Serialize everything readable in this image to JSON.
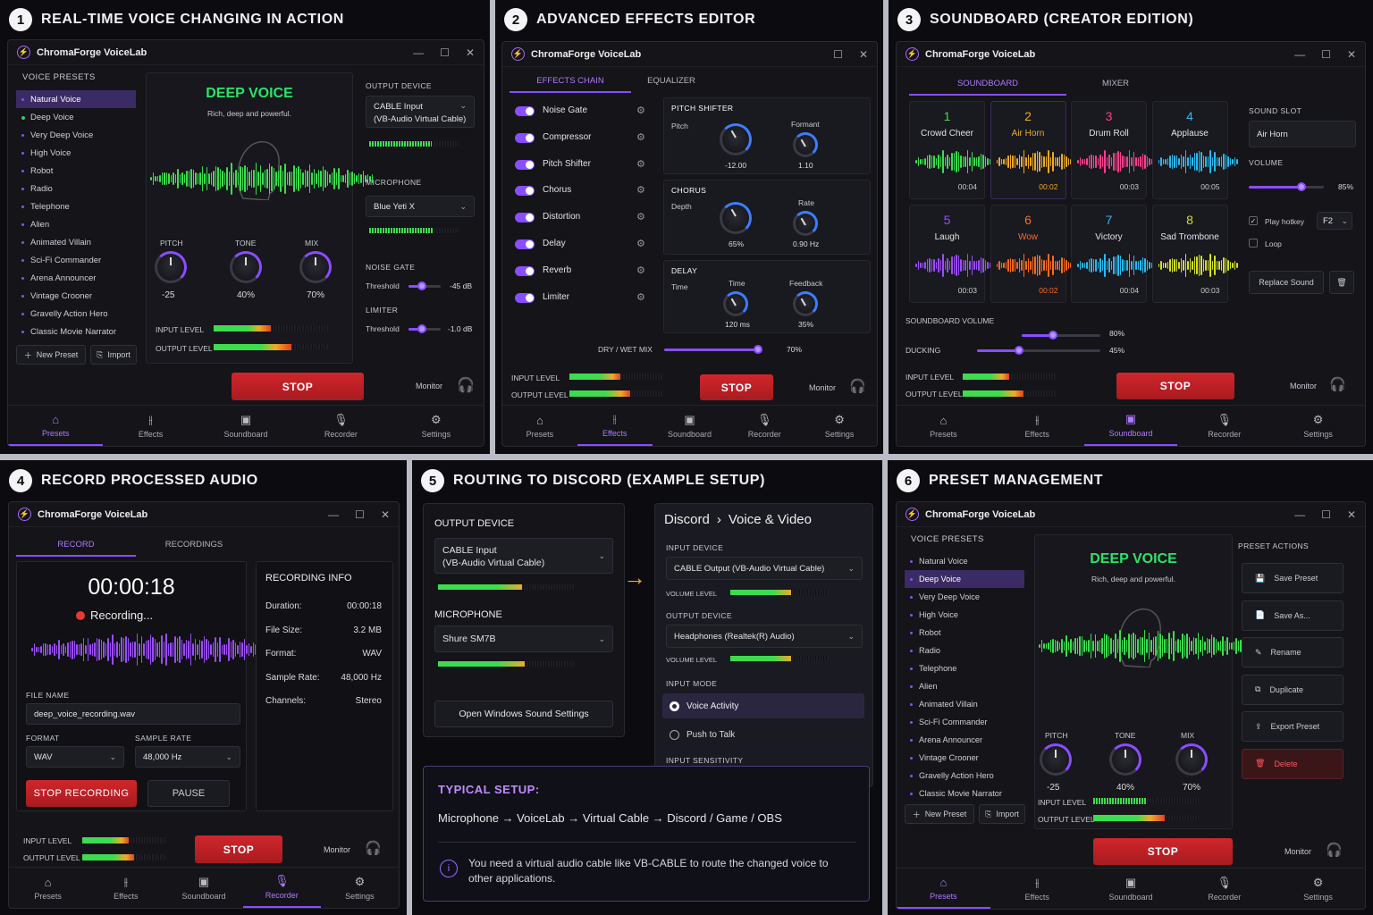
{
  "app_title": "ChromaForge VoiceLab",
  "nav": [
    "Presets",
    "Effects",
    "Soundboard",
    "Recorder",
    "Settings"
  ],
  "monitor": "Monitor",
  "stop": "STOP",
  "input_level": "INPUT LEVEL",
  "output_level": "OUTPUT LEVEL",
  "colors": {
    "accent": "#8a4dff",
    "stop": "#c8232a",
    "green": "#3ddc4e"
  },
  "p1": {
    "num": "1",
    "title": "REAL-TIME VOICE CHANGING IN ACTION",
    "presets_header": "VOICE PRESETS",
    "presets": [
      "Natural Voice",
      "Deep Voice",
      "Very Deep Voice",
      "High Voice",
      "Robot",
      "Radio",
      "Telephone",
      "Alien",
      "Animated Villain",
      "Sci-Fi Commander",
      "Arena Announcer",
      "Vintage Crooner",
      "Gravelly Action Hero",
      "Classic Movie Narrator"
    ],
    "new_preset": "New Preset",
    "import": "Import",
    "voice_name": "DEEP VOICE",
    "voice_desc": "Rich, deep and powerful.",
    "knobs": [
      {
        "label": "PITCH",
        "value": "-25"
      },
      {
        "label": "TONE",
        "value": "40%"
      },
      {
        "label": "MIX",
        "value": "70%"
      }
    ],
    "output_device_header": "OUTPUT DEVICE",
    "output_device": [
      "CABLE Input",
      "(VB-Audio Virtual Cable)"
    ],
    "microphone_header": "MICROPHONE",
    "microphone": "Blue Yeti X",
    "noise_gate_header": "NOISE GATE",
    "threshold": "Threshold",
    "noise_gate_value": "-45 dB",
    "limiter_header": "LIMITER",
    "limiter_value": "-1.0 dB"
  },
  "p2": {
    "num": "2",
    "title": "ADVANCED EFFECTS EDITOR",
    "tabs": [
      "EFFECTS CHAIN",
      "EQUALIZER"
    ],
    "effects": [
      "Noise Gate",
      "Compressor",
      "Pitch Shifter",
      "Chorus",
      "Distortion",
      "Delay",
      "Reverb",
      "Limiter"
    ],
    "pitch_shifter": {
      "header": "PITCH SHIFTER",
      "pitch": "Pitch",
      "pitch_val": "-12.00",
      "formant": "Formant",
      "formant_val": "1.10"
    },
    "chorus": {
      "header": "CHORUS",
      "depth": "Depth",
      "depth_val": "65%",
      "rate": "Rate",
      "rate_val": "0.90 Hz"
    },
    "delay": {
      "header": "DELAY",
      "time_label": "Time",
      "time": "Time",
      "time_val": "120 ms",
      "feedback": "Feedback",
      "feedback_val": "35%"
    },
    "dry_wet": "DRY / WET MIX",
    "dry_wet_val": "70%",
    "dry_wet_level": 0.7
  },
  "p3": {
    "num": "3",
    "title": "SOUNDBOARD (CREATOR EDITION)",
    "tabs": [
      "SOUNDBOARD",
      "MIXER"
    ],
    "sounds": [
      {
        "n": "1",
        "name": "Crowd Cheer",
        "time": "00:04",
        "color": "#3ddc4e"
      },
      {
        "n": "2",
        "name": "Air Horn",
        "time": "00:02",
        "color": "#f0a92a"
      },
      {
        "n": "3",
        "name": "Drum Roll",
        "time": "00:03",
        "color": "#ff3f8e"
      },
      {
        "n": "4",
        "name": "Applause",
        "time": "00:05",
        "color": "#2bb9f0"
      },
      {
        "n": "5",
        "name": "Laugh",
        "time": "00:03",
        "color": "#9b4dff"
      },
      {
        "n": "6",
        "name": "Wow",
        "time": "00:02",
        "color": "#ff6a1f"
      },
      {
        "n": "7",
        "name": "Victory",
        "time": "00:04",
        "color": "#2bb9f0"
      },
      {
        "n": "8",
        "name": "Sad Trombone",
        "time": "00:03",
        "color": "#d4e02a"
      }
    ],
    "sound_slot_header": "SOUND SLOT",
    "sound_slot": "Air Horn",
    "volume_header": "VOLUME",
    "volume_val": "85%",
    "play_hotkey": "Play hotkey",
    "hotkey": "F2",
    "loop": "Loop",
    "replace": "Replace Sound",
    "sb_volume": "SOUNDBOARD VOLUME",
    "sb_volume_val": "80%",
    "ducking": "DUCKING",
    "ducking_val": "45%"
  },
  "p4": {
    "num": "4",
    "title": "RECORD PROCESSED AUDIO",
    "tabs": [
      "RECORD",
      "RECORDINGS"
    ],
    "timer": "00:00:18",
    "status": "Recording...",
    "file_name_header": "FILE NAME",
    "file_name": "deep_voice_recording.wav",
    "format_header": "FORMAT",
    "format": "WAV",
    "sample_rate_header": "SAMPLE RATE",
    "sample_rate": "48,000 Hz",
    "stop_recording": "STOP RECORDING",
    "pause": "PAUSE",
    "info_header": "RECORDING INFO",
    "info": [
      [
        "Duration:",
        "00:00:18"
      ],
      [
        "File Size:",
        "3.2 MB"
      ],
      [
        "Format:",
        "WAV"
      ],
      [
        "Sample Rate:",
        "48,000 Hz"
      ],
      [
        "Channels:",
        "Stereo"
      ]
    ]
  },
  "p5": {
    "num": "5",
    "title": "ROUTING TO DISCORD (EXAMPLE SETUP)",
    "output_device_header": "OUTPUT DEVICE",
    "output_device": [
      "CABLE Input",
      "(VB-Audio Virtual Cable)"
    ],
    "microphone_header": "MICROPHONE",
    "microphone": "Shure SM7B",
    "open_settings": "Open Windows Sound Settings",
    "discord": "Discord",
    "voice_video": "Voice & Video",
    "input_device_header": "INPUT DEVICE",
    "input_device": "CABLE Output (VB-Audio Virtual Cable)",
    "volume_level": "VOLUME LEVEL",
    "output_device2_header": "OUTPUT DEVICE",
    "output_device2": "Headphones (Realtek(R) Audio)",
    "input_mode_header": "INPUT MODE",
    "voice_activity": "Voice Activity",
    "push_to_talk": "Push to Talk",
    "sensitivity": "INPUT SENSITIVITY",
    "typical_header": "TYPICAL SETUP:",
    "chain": "Microphone → VoiceLab → Virtual Cable → Discord / Game / OBS",
    "note": "You need a virtual audio cable like VB-CABLE to route the changed voice to other applications."
  },
  "p6": {
    "num": "6",
    "title": "PRESET MANAGEMENT",
    "actions_header": "PRESET ACTIONS",
    "actions": [
      "Save Preset",
      "Save As...",
      "Rename",
      "Duplicate",
      "Export Preset",
      "Delete"
    ]
  }
}
